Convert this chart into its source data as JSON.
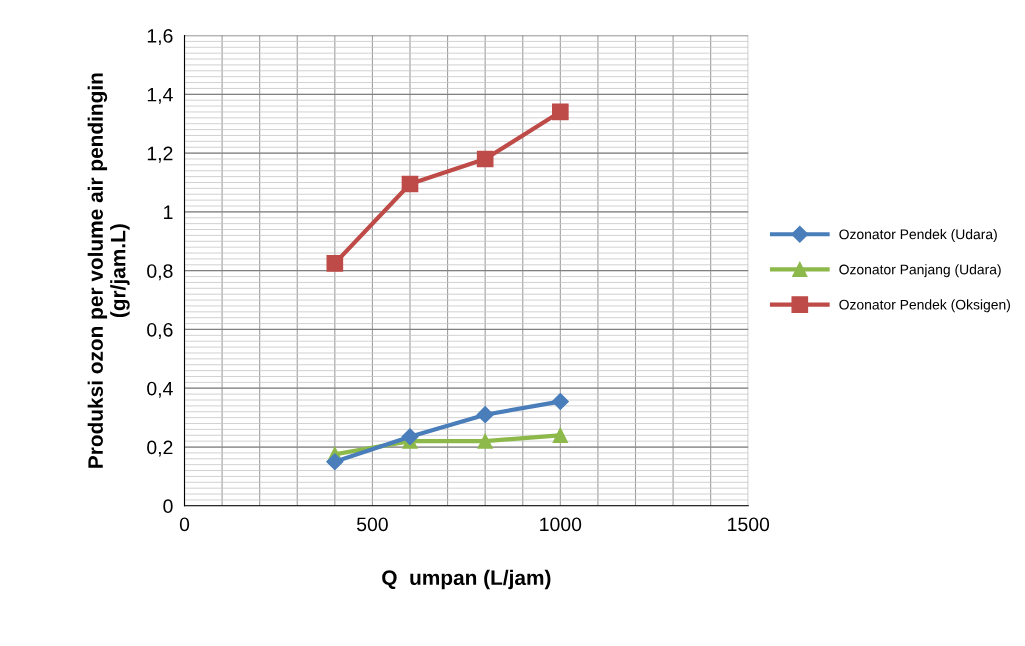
{
  "chart_data": {
    "type": "line",
    "xlabel": "Q  umpan (L/jam)",
    "ylabel": "Produksi ozon per volume air pendingin\n(gr/jam.L)",
    "x": [
      400,
      600,
      800,
      1000
    ],
    "series": [
      {
        "name": "Ozonator Pendek (Udara)",
        "color": "#4a7ebb",
        "marker": "diamond",
        "values": [
          0.15,
          0.235,
          0.31,
          0.355
        ]
      },
      {
        "name": "Ozonator Panjang (Udara)",
        "color": "#8db84a",
        "marker": "triangle",
        "values": [
          0.175,
          0.22,
          0.22,
          0.24
        ]
      },
      {
        "name": "Ozonator Pendek (Oksigen)",
        "color": "#be4b48",
        "marker": "square",
        "values": [
          0.825,
          1.095,
          1.18,
          1.34
        ]
      }
    ],
    "xlim": [
      0,
      1500
    ],
    "xticks": [
      0,
      500,
      1000,
      1500
    ],
    "ylim": [
      0,
      1.6
    ],
    "yticks": [
      0,
      {
        "value": 0.2,
        "label": "0,2"
      },
      {
        "value": 0.4,
        "label": "0,4"
      },
      {
        "value": 0.6,
        "label": "0,6"
      },
      {
        "value": 0.8,
        "label": "0,8"
      },
      1,
      {
        "value": 1.2,
        "label": "1,2"
      },
      {
        "value": 1.4,
        "label": "1,4"
      },
      {
        "value": 1.6,
        "label": "1,6"
      }
    ],
    "grid": true,
    "legend": "right",
    "line_style": "solid"
  }
}
